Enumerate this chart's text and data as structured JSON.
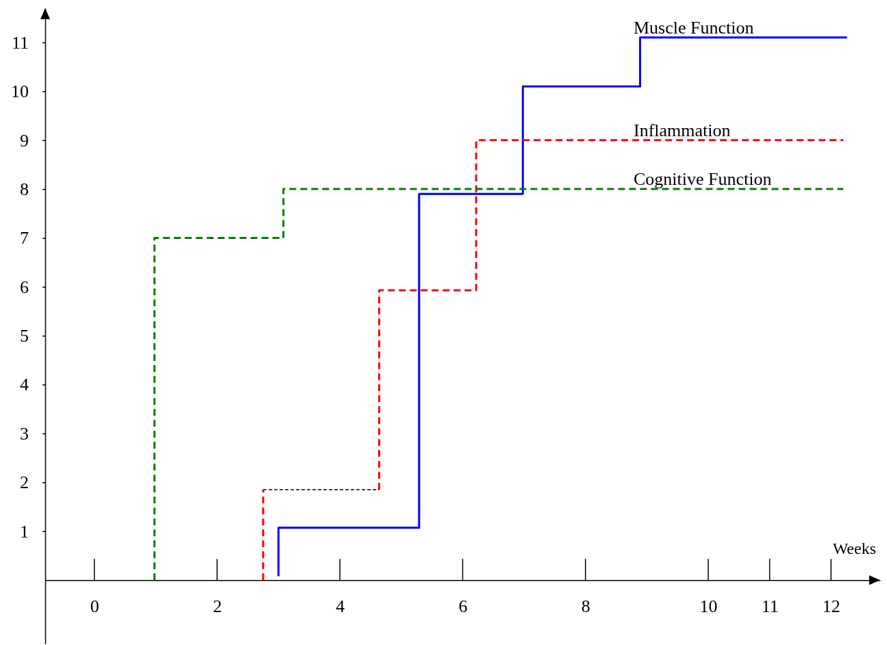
{
  "chart_data": {
    "type": "step",
    "xlabel": "Weeks",
    "xlim": [
      -0.8,
      12.8
    ],
    "ylim": [
      -1.3,
      11.7
    ],
    "xticks": [
      0,
      2,
      4,
      6,
      8,
      10,
      11,
      12
    ],
    "yticks": [
      1,
      2,
      3,
      4,
      5,
      6,
      7,
      8,
      9,
      10,
      11
    ],
    "grid": false,
    "series": [
      {
        "name": "Muscle Function",
        "color": "#0000ff",
        "line_style": "solid",
        "x": [
          3.0,
          3.0,
          5.29,
          6.98,
          8.89,
          12.26
        ],
        "values": [
          0.08,
          1.07,
          7.9,
          10.1,
          11.1,
          11.1
        ]
      },
      {
        "name": "Inflammation",
        "color": "#ff0000",
        "line_style": "dashed",
        "x": [
          2.75,
          2.75,
          null,
          4.64,
          4.64,
          6.22,
          12.2
        ],
        "values": [
          0,
          1.85,
          null,
          1.85,
          5.93,
          9,
          9
        ]
      },
      {
        "name": "Cognitive Function",
        "color": "#008000",
        "line_style": "dashed",
        "x": [
          0.98,
          0.98,
          3.08,
          12.2
        ],
        "values": [
          0,
          7,
          8,
          8
        ]
      },
      {
        "color": "#000000",
        "line_style": "dotted",
        "x": [
          2.75,
          4.64
        ],
        "values": [
          1.85,
          1.85
        ]
      }
    ]
  }
}
